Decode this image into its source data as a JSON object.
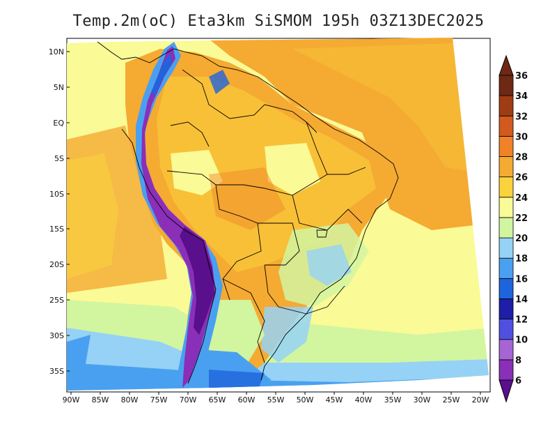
{
  "title": "Temp.2m(oC) Eta3km SiSMOM 195h 03Z13DEC2025",
  "axes": {
    "lat_labels": [
      "10N",
      "5N",
      "EQ",
      "5S",
      "10S",
      "15S",
      "20S",
      "25S",
      "30S",
      "35S"
    ],
    "lon_labels": [
      "90W",
      "85W",
      "80W",
      "75W",
      "70W",
      "65W",
      "60W",
      "55W",
      "50W",
      "45W",
      "40W",
      "35W",
      "30W",
      "25W",
      "20W"
    ]
  },
  "colorbar": {
    "levels": [
      "6",
      "8",
      "10",
      "12",
      "14",
      "16",
      "18",
      "20",
      "22",
      "24",
      "26",
      "28",
      "30",
      "32",
      "34",
      "36"
    ],
    "colors": [
      "#5a0f8c",
      "#8a2fb8",
      "#a566d4",
      "#5050e0",
      "#1e1ea8",
      "#1e64dc",
      "#4aa0f0",
      "#96d2f5",
      "#d2f5a0",
      "#fafa96",
      "#fad23c",
      "#f5aa32",
      "#f08228",
      "#d25a1e",
      "#a03c14",
      "#6e2814"
    ],
    "bottom_color": "#5a0f8c",
    "top_color": "#6e2814"
  }
}
